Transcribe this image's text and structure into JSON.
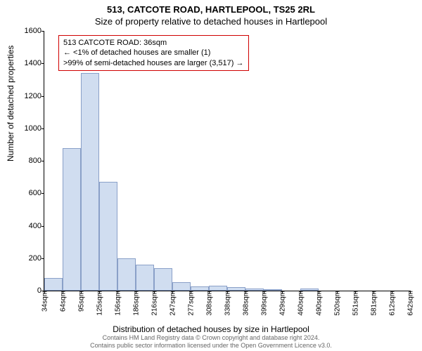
{
  "title_line1": "513, CATCOTE ROAD, HARTLEPOOL, TS25 2RL",
  "title_line2": "Size of property relative to detached houses in Hartlepool",
  "ylabel": "Number of detached properties",
  "xlabel": "Distribution of detached houses by size in Hartlepool",
  "footer_line1": "Contains HM Land Registry data © Crown copyright and database right 2024.",
  "footer_line2": "Contains public sector information licensed under the Open Government Licence v3.0.",
  "callout": {
    "line1": "513 CATCOTE ROAD: 36sqm",
    "line2": "← <1% of detached houses are smaller (1)",
    "line3": ">99% of semi-detached houses are larger (3,517) →"
  },
  "chart": {
    "type": "histogram",
    "ylim": [
      0,
      1600
    ],
    "ytick_step": 200,
    "bar_fill": "#d0ddf0",
    "bar_stroke": "#8aa0c8",
    "background": "#ffffff",
    "callout_border": "#d00000",
    "xticks": [
      "34sqm",
      "64sqm",
      "95sqm",
      "125sqm",
      "156sqm",
      "186sqm",
      "216sqm",
      "247sqm",
      "277sqm",
      "308sqm",
      "338sqm",
      "368sqm",
      "399sqm",
      "429sqm",
      "460sqm",
      "490sqm",
      "520sqm",
      "551sqm",
      "581sqm",
      "612sqm",
      "642sqm"
    ],
    "bars": [
      {
        "x": 34,
        "value": 80
      },
      {
        "x": 64,
        "value": 880
      },
      {
        "x": 95,
        "value": 1340
      },
      {
        "x": 125,
        "value": 670
      },
      {
        "x": 156,
        "value": 200
      },
      {
        "x": 186,
        "value": 160
      },
      {
        "x": 216,
        "value": 140
      },
      {
        "x": 247,
        "value": 50
      },
      {
        "x": 277,
        "value": 25
      },
      {
        "x": 308,
        "value": 30
      },
      {
        "x": 338,
        "value": 20
      },
      {
        "x": 368,
        "value": 15
      },
      {
        "x": 399,
        "value": 10
      },
      {
        "x": 429,
        "value": 0
      },
      {
        "x": 460,
        "value": 15
      },
      {
        "x": 490,
        "value": 0
      },
      {
        "x": 520,
        "value": 0
      },
      {
        "x": 551,
        "value": 0
      },
      {
        "x": 581,
        "value": 0
      },
      {
        "x": 612,
        "value": 0
      }
    ],
    "x_domain": [
      34,
      642
    ]
  }
}
